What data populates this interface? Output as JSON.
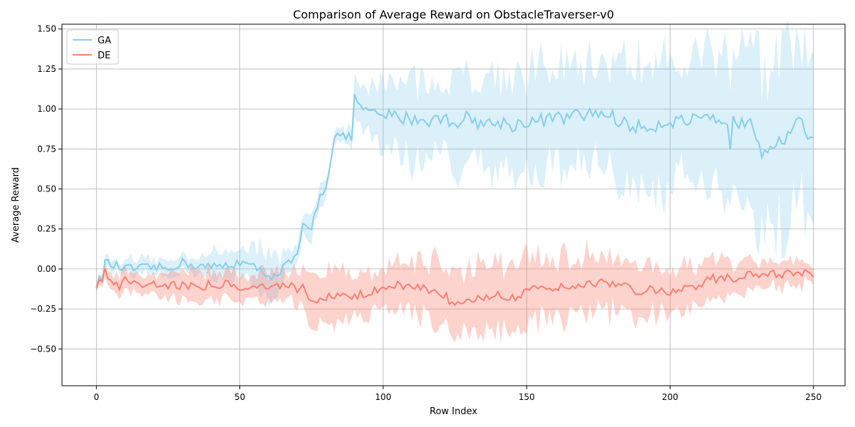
{
  "chart_data": {
    "type": "line",
    "title": "Comparison of Average Reward on ObstacleTraverser-v0",
    "xlabel": "Row Index",
    "ylabel": "Average Reward",
    "xlim": [
      -12,
      261
    ],
    "ylim": [
      -0.73,
      1.53
    ],
    "xticks": [
      0,
      50,
      100,
      150,
      200,
      250
    ],
    "yticks": [
      -0.5,
      -0.25,
      0.0,
      0.25,
      0.5,
      0.75,
      1.0,
      1.25,
      1.5
    ],
    "xtick_labels": [
      "0",
      "50",
      "100",
      "150",
      "200",
      "250"
    ],
    "ytick_labels": [
      "−0.50",
      "−0.25",
      "0.00",
      "0.25",
      "0.50",
      "0.75",
      "1.00",
      "1.25",
      "1.50"
    ],
    "grid": true,
    "legend_position": "top-left",
    "series": [
      {
        "name": "GA",
        "color": "#87ceeb",
        "knots": [
          [
            0,
            -0.1
          ],
          [
            2,
            -0.05
          ],
          [
            3,
            0.04
          ],
          [
            6,
            0.02
          ],
          [
            10,
            0.0
          ],
          [
            15,
            0.0
          ],
          [
            20,
            0.01
          ],
          [
            25,
            0.0
          ],
          [
            28,
            0.03
          ],
          [
            30,
            0.04
          ],
          [
            35,
            0.02
          ],
          [
            40,
            0.01
          ],
          [
            45,
            0.02
          ],
          [
            48,
            0.03
          ],
          [
            50,
            0.05
          ],
          [
            53,
            0.02
          ],
          [
            56,
            0.0
          ],
          [
            60,
            -0.03
          ],
          [
            62,
            -0.05
          ],
          [
            65,
            0.0
          ],
          [
            68,
            0.05
          ],
          [
            70,
            0.07
          ],
          [
            72,
            0.26
          ],
          [
            75,
            0.25
          ],
          [
            77,
            0.4
          ],
          [
            78,
            0.48
          ],
          [
            80,
            0.5
          ],
          [
            81,
            0.62
          ],
          [
            82,
            0.72
          ],
          [
            83,
            0.84
          ],
          [
            85,
            0.83
          ],
          [
            88,
            0.82
          ],
          [
            89,
            0.83
          ],
          [
            90,
            1.07
          ],
          [
            91,
            1.05
          ],
          [
            93,
            0.99
          ],
          [
            96,
            0.96
          ],
          [
            100,
            0.96
          ],
          [
            105,
            0.95
          ],
          [
            110,
            0.94
          ],
          [
            115,
            0.93
          ],
          [
            120,
            0.94
          ],
          [
            125,
            0.92
          ],
          [
            130,
            0.95
          ],
          [
            135,
            0.9
          ],
          [
            140,
            0.92
          ],
          [
            145,
            0.9
          ],
          [
            150,
            0.92
          ],
          [
            155,
            0.93
          ],
          [
            160,
            0.94
          ],
          [
            165,
            0.95
          ],
          [
            170,
            0.96
          ],
          [
            175,
            0.98
          ],
          [
            180,
            0.95
          ],
          [
            185,
            0.9
          ],
          [
            190,
            0.88
          ],
          [
            195,
            0.9
          ],
          [
            200,
            0.93
          ],
          [
            205,
            0.92
          ],
          [
            210,
            0.93
          ],
          [
            215,
            0.92
          ],
          [
            220,
            0.87
          ],
          [
            221,
            0.76
          ],
          [
            222,
            0.97
          ],
          [
            225,
            0.9
          ],
          [
            228,
            0.97
          ],
          [
            230,
            0.85
          ],
          [
            232,
            0.74
          ],
          [
            235,
            0.78
          ],
          [
            238,
            0.82
          ],
          [
            240,
            0.8
          ],
          [
            243,
            0.88
          ],
          [
            246,
            0.92
          ],
          [
            248,
            0.82
          ],
          [
            250,
            0.86
          ]
        ],
        "band_knots": [
          [
            0,
            0.02
          ],
          [
            10,
            0.05
          ],
          [
            30,
            0.05
          ],
          [
            40,
            0.08
          ],
          [
            50,
            0.1
          ],
          [
            60,
            0.15
          ],
          [
            70,
            0.05
          ],
          [
            75,
            0.08
          ],
          [
            80,
            0.05
          ],
          [
            85,
            0.05
          ],
          [
            89,
            0.05
          ],
          [
            90,
            0.12
          ],
          [
            100,
            0.2
          ],
          [
            110,
            0.25
          ],
          [
            120,
            0.22
          ],
          [
            130,
            0.3
          ],
          [
            140,
            0.32
          ],
          [
            150,
            0.3
          ],
          [
            160,
            0.33
          ],
          [
            170,
            0.3
          ],
          [
            180,
            0.35
          ],
          [
            190,
            0.4
          ],
          [
            200,
            0.4
          ],
          [
            210,
            0.4
          ],
          [
            220,
            0.48
          ],
          [
            230,
            0.55
          ],
          [
            240,
            0.5
          ],
          [
            250,
            0.45
          ]
        ]
      },
      {
        "name": "DE",
        "color": "#fa8072",
        "knots": [
          [
            0,
            -0.12
          ],
          [
            3,
            -0.02
          ],
          [
            5,
            -0.06
          ],
          [
            8,
            -0.1
          ],
          [
            10,
            -0.05
          ],
          [
            15,
            -0.1
          ],
          [
            20,
            -0.09
          ],
          [
            25,
            -0.1
          ],
          [
            30,
            -0.1
          ],
          [
            35,
            -0.11
          ],
          [
            40,
            -0.1
          ],
          [
            45,
            -0.09
          ],
          [
            50,
            -0.11
          ],
          [
            55,
            -0.1
          ],
          [
            60,
            -0.12
          ],
          [
            65,
            -0.1
          ],
          [
            70,
            -0.12
          ],
          [
            72,
            -0.1
          ],
          [
            75,
            -0.2
          ],
          [
            80,
            -0.18
          ],
          [
            85,
            -0.17
          ],
          [
            90,
            -0.16
          ],
          [
            95,
            -0.16
          ],
          [
            100,
            -0.12
          ],
          [
            105,
            -0.1
          ],
          [
            110,
            -0.12
          ],
          [
            115,
            -0.13
          ],
          [
            120,
            -0.15
          ],
          [
            125,
            -0.22
          ],
          [
            130,
            -0.18
          ],
          [
            135,
            -0.17
          ],
          [
            140,
            -0.15
          ],
          [
            145,
            -0.18
          ],
          [
            150,
            -0.13
          ],
          [
            155,
            -0.12
          ],
          [
            160,
            -0.12
          ],
          [
            165,
            -0.1
          ],
          [
            170,
            -0.09
          ],
          [
            175,
            -0.08
          ],
          [
            180,
            -0.1
          ],
          [
            185,
            -0.12
          ],
          [
            190,
            -0.14
          ],
          [
            195,
            -0.13
          ],
          [
            200,
            -0.15
          ],
          [
            205,
            -0.11
          ],
          [
            210,
            -0.1
          ],
          [
            215,
            -0.06
          ],
          [
            220,
            -0.06
          ],
          [
            225,
            -0.05
          ],
          [
            230,
            -0.04
          ],
          [
            235,
            -0.02
          ],
          [
            240,
            -0.04
          ],
          [
            245,
            -0.02
          ],
          [
            250,
            -0.04
          ]
        ],
        "band_knots": [
          [
            0,
            0.04
          ],
          [
            10,
            0.06
          ],
          [
            30,
            0.08
          ],
          [
            50,
            0.08
          ],
          [
            70,
            0.1
          ],
          [
            75,
            0.15
          ],
          [
            90,
            0.15
          ],
          [
            100,
            0.12
          ],
          [
            110,
            0.15
          ],
          [
            120,
            0.2
          ],
          [
            130,
            0.2
          ],
          [
            145,
            0.22
          ],
          [
            160,
            0.2
          ],
          [
            180,
            0.18
          ],
          [
            200,
            0.15
          ],
          [
            220,
            0.1
          ],
          [
            235,
            0.08
          ],
          [
            250,
            0.07
          ]
        ]
      }
    ]
  }
}
